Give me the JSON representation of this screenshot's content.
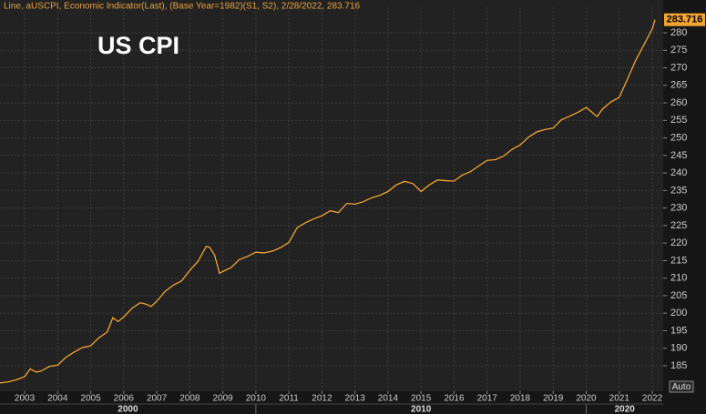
{
  "chart_data": {
    "type": "line",
    "header": "Line, aUSCPI, Economic Indicator(Last), (Base Year=1982)(S1, S2), 2/28/2022, 283.716",
    "title": "US CPI",
    "color": "#f5a431",
    "grid": true,
    "button": "Auto",
    "xlim": [
      2002.255,
      2022.33
    ],
    "ylim": [
      177.73,
      287.27
    ],
    "xticks": [
      2003,
      2004,
      2005,
      2006,
      2007,
      2008,
      2009,
      2010,
      2011,
      2012,
      2013,
      2014,
      2015,
      2016,
      2017,
      2018,
      2019,
      2020,
      2021,
      2022
    ],
    "yticks": [
      185,
      190,
      195,
      200,
      205,
      210,
      215,
      220,
      225,
      230,
      235,
      240,
      245,
      250,
      255,
      260,
      265,
      270,
      275,
      280
    ],
    "decade_labels": [
      2000,
      2010,
      2020
    ],
    "x": [
      2002.25,
      2002.5,
      2002.75,
      2003.0,
      2003.17,
      2003.35,
      2003.5,
      2003.75,
      2004.0,
      2004.25,
      2004.5,
      2004.75,
      2005.0,
      2005.25,
      2005.5,
      2005.67,
      2005.83,
      2006.0,
      2006.25,
      2006.5,
      2006.67,
      2006.83,
      2007.0,
      2007.25,
      2007.5,
      2007.75,
      2008.0,
      2008.25,
      2008.5,
      2008.6,
      2008.75,
      2008.9,
      2009.0,
      2009.25,
      2009.5,
      2009.75,
      2010.0,
      2010.25,
      2010.5,
      2010.75,
      2011.0,
      2011.25,
      2011.5,
      2011.75,
      2012.0,
      2012.25,
      2012.5,
      2012.75,
      2013.0,
      2013.25,
      2013.5,
      2013.75,
      2014.0,
      2014.25,
      2014.5,
      2014.75,
      2015.0,
      2015.25,
      2015.5,
      2015.75,
      2016.0,
      2016.25,
      2016.5,
      2016.75,
      2017.0,
      2017.25,
      2017.5,
      2017.75,
      2018.0,
      2018.25,
      2018.5,
      2018.75,
      2019.0,
      2019.25,
      2019.5,
      2019.75,
      2020.0,
      2020.33,
      2020.5,
      2020.75,
      2021.0,
      2021.25,
      2021.5,
      2021.75,
      2022.0,
      2022.083
    ],
    "values": [
      180.1,
      180.4,
      181.0,
      181.9,
      184.1,
      183.2,
      183.5,
      184.8,
      185.2,
      187.4,
      188.9,
      190.2,
      190.7,
      193.0,
      194.6,
      198.7,
      197.6,
      198.9,
      201.4,
      203.0,
      202.6,
      201.9,
      203.4,
      206.2,
      208.0,
      209.2,
      212.2,
      214.8,
      219.1,
      218.8,
      216.6,
      211.4,
      211.9,
      213.0,
      215.3,
      216.2,
      217.4,
      217.2,
      217.7,
      218.7,
      220.2,
      224.4,
      225.8,
      226.9,
      227.8,
      229.2,
      228.7,
      231.3,
      231.1,
      231.8,
      232.9,
      233.6,
      234.7,
      236.6,
      237.6,
      237.0,
      234.7,
      236.6,
      238.0,
      237.8,
      237.7,
      239.4,
      240.4,
      242.0,
      243.6,
      243.8,
      244.8,
      246.7,
      248.0,
      250.2,
      251.7,
      252.4,
      252.8,
      255.2,
      256.2,
      257.3,
      258.7,
      256.1,
      258.3,
      260.3,
      261.6,
      266.8,
      272.2,
      276.6,
      281.1,
      283.716
    ]
  }
}
